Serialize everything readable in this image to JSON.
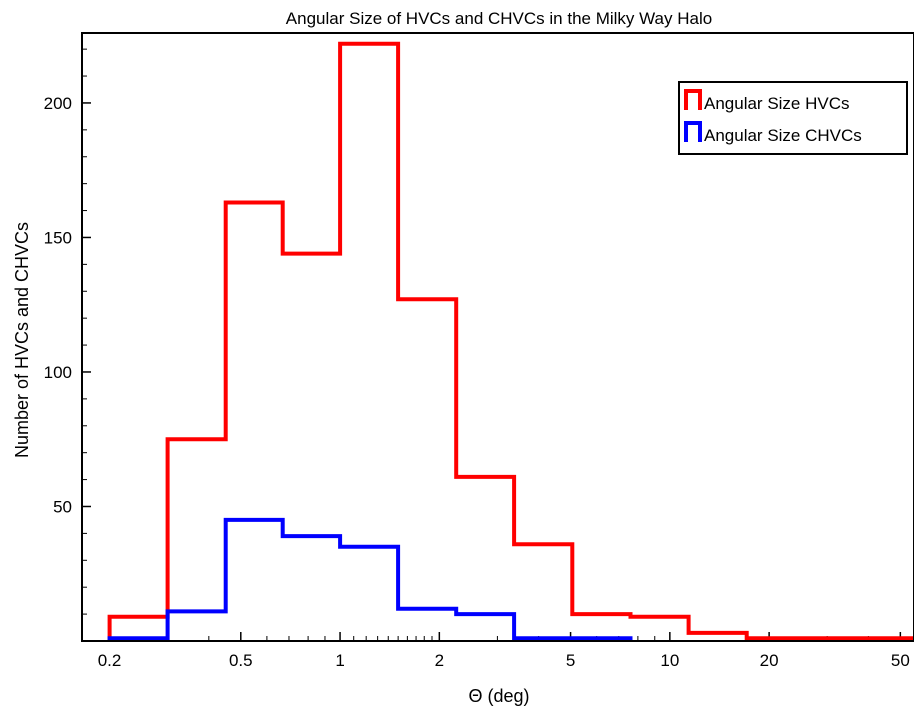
{
  "chart_data": {
    "type": "histogram",
    "title": "Angular Size of HVCs and CHVCs in the Milky Way Halo",
    "xlabel": "Θ (deg)",
    "ylabel": "Number of HVCs and CHVCs",
    "xscale": "log",
    "xlim": [
      0.165,
      55
    ],
    "ylim": [
      0,
      226
    ],
    "grid": false,
    "legend_position": "top-right",
    "x_ticks": [
      {
        "value": 0.2,
        "label": "0.2"
      },
      {
        "value": 0.5,
        "label": "0.5"
      },
      {
        "value": 1,
        "label": "1"
      },
      {
        "value": 2,
        "label": "2"
      },
      {
        "value": 5,
        "label": "5"
      },
      {
        "value": 10,
        "label": "10"
      },
      {
        "value": 20,
        "label": "20"
      },
      {
        "value": 50,
        "label": "50"
      }
    ],
    "y_ticks": [
      {
        "value": 50,
        "label": "50"
      },
      {
        "value": 100,
        "label": "100"
      },
      {
        "value": 150,
        "label": "150"
      },
      {
        "value": 200,
        "label": "200"
      }
    ],
    "series": [
      {
        "name": "Angular Size HVCs",
        "color": "#ff0000",
        "bin_edges": [
          0.2,
          0.3,
          0.45,
          0.67,
          1.0,
          1.5,
          2.25,
          3.37,
          5.06,
          7.6,
          11.4,
          17.1,
          55
        ],
        "values": [
          9,
          75,
          163,
          144,
          222,
          127,
          61,
          36,
          10,
          9,
          3,
          1
        ]
      },
      {
        "name": "Angular Size CHVCs",
        "color": "#0000ff",
        "bin_edges": [
          0.2,
          0.3,
          0.45,
          0.67,
          1.0,
          1.5,
          2.25,
          3.37,
          5.06,
          7.6
        ],
        "values": [
          1,
          11,
          45,
          39,
          35,
          12,
          10,
          1,
          1
        ]
      }
    ]
  }
}
